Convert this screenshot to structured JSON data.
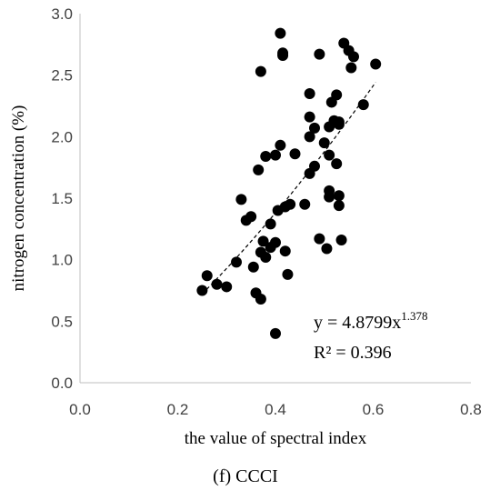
{
  "chart_data": {
    "type": "scatter",
    "xlabel": "the value of spectral index",
    "ylabel": "nitrogen concentration (%)",
    "xlim": [
      0.0,
      0.8
    ],
    "ylim": [
      0.0,
      3.0
    ],
    "x_ticks": [
      "0.0",
      "0.2",
      "0.4",
      "0.6",
      "0.8"
    ],
    "y_ticks": [
      "0.0",
      "0.5",
      "1.0",
      "1.5",
      "2.0",
      "2.5",
      "3.0"
    ],
    "grid": false,
    "points": [
      [
        0.25,
        0.75
      ],
      [
        0.26,
        0.87
      ],
      [
        0.28,
        0.8
      ],
      [
        0.3,
        0.78
      ],
      [
        0.32,
        0.98
      ],
      [
        0.33,
        1.49
      ],
      [
        0.34,
        1.32
      ],
      [
        0.35,
        1.35
      ],
      [
        0.355,
        0.94
      ],
      [
        0.36,
        0.73
      ],
      [
        0.37,
        0.68
      ],
      [
        0.365,
        1.73
      ],
      [
        0.37,
        1.06
      ],
      [
        0.375,
        1.15
      ],
      [
        0.38,
        1.02
      ],
      [
        0.37,
        2.53
      ],
      [
        0.38,
        1.84
      ],
      [
        0.39,
        1.1
      ],
      [
        0.39,
        1.29
      ],
      [
        0.4,
        1.85
      ],
      [
        0.4,
        1.14
      ],
      [
        0.405,
        1.4
      ],
      [
        0.41,
        1.93
      ],
      [
        0.42,
        1.43
      ],
      [
        0.42,
        1.07
      ],
      [
        0.425,
        0.88
      ],
      [
        0.43,
        1.45
      ],
      [
        0.41,
        2.84
      ],
      [
        0.415,
        2.68
      ],
      [
        0.415,
        2.66
      ],
      [
        0.4,
        0.4
      ],
      [
        0.44,
        1.86
      ],
      [
        0.46,
        1.45
      ],
      [
        0.47,
        1.7
      ],
      [
        0.47,
        2.0
      ],
      [
        0.47,
        2.35
      ],
      [
        0.47,
        2.16
      ],
      [
        0.48,
        1.76
      ],
      [
        0.48,
        2.07
      ],
      [
        0.49,
        2.67
      ],
      [
        0.49,
        1.17
      ],
      [
        0.5,
        1.95
      ],
      [
        0.505,
        1.09
      ],
      [
        0.51,
        1.51
      ],
      [
        0.51,
        1.85
      ],
      [
        0.51,
        1.56
      ],
      [
        0.51,
        2.08
      ],
      [
        0.515,
        2.28
      ],
      [
        0.52,
        2.13
      ],
      [
        0.525,
        1.78
      ],
      [
        0.525,
        2.34
      ],
      [
        0.53,
        1.44
      ],
      [
        0.53,
        1.52
      ],
      [
        0.53,
        2.12
      ],
      [
        0.535,
        1.16
      ],
      [
        0.53,
        2.1
      ],
      [
        0.54,
        2.76
      ],
      [
        0.55,
        2.7
      ],
      [
        0.555,
        2.56
      ],
      [
        0.56,
        2.65
      ],
      [
        0.58,
        2.26
      ],
      [
        0.605,
        2.59
      ]
    ],
    "trendline": {
      "type": "power",
      "a": 4.8799,
      "b": 1.378,
      "x_range": [
        0.25,
        0.605
      ],
      "style": "dashed"
    },
    "annotations": {
      "equation_main": "y = 4.8799x",
      "equation_exp": "1.378",
      "r2": "R² = 0.396"
    },
    "caption": "(f) CCCI"
  }
}
